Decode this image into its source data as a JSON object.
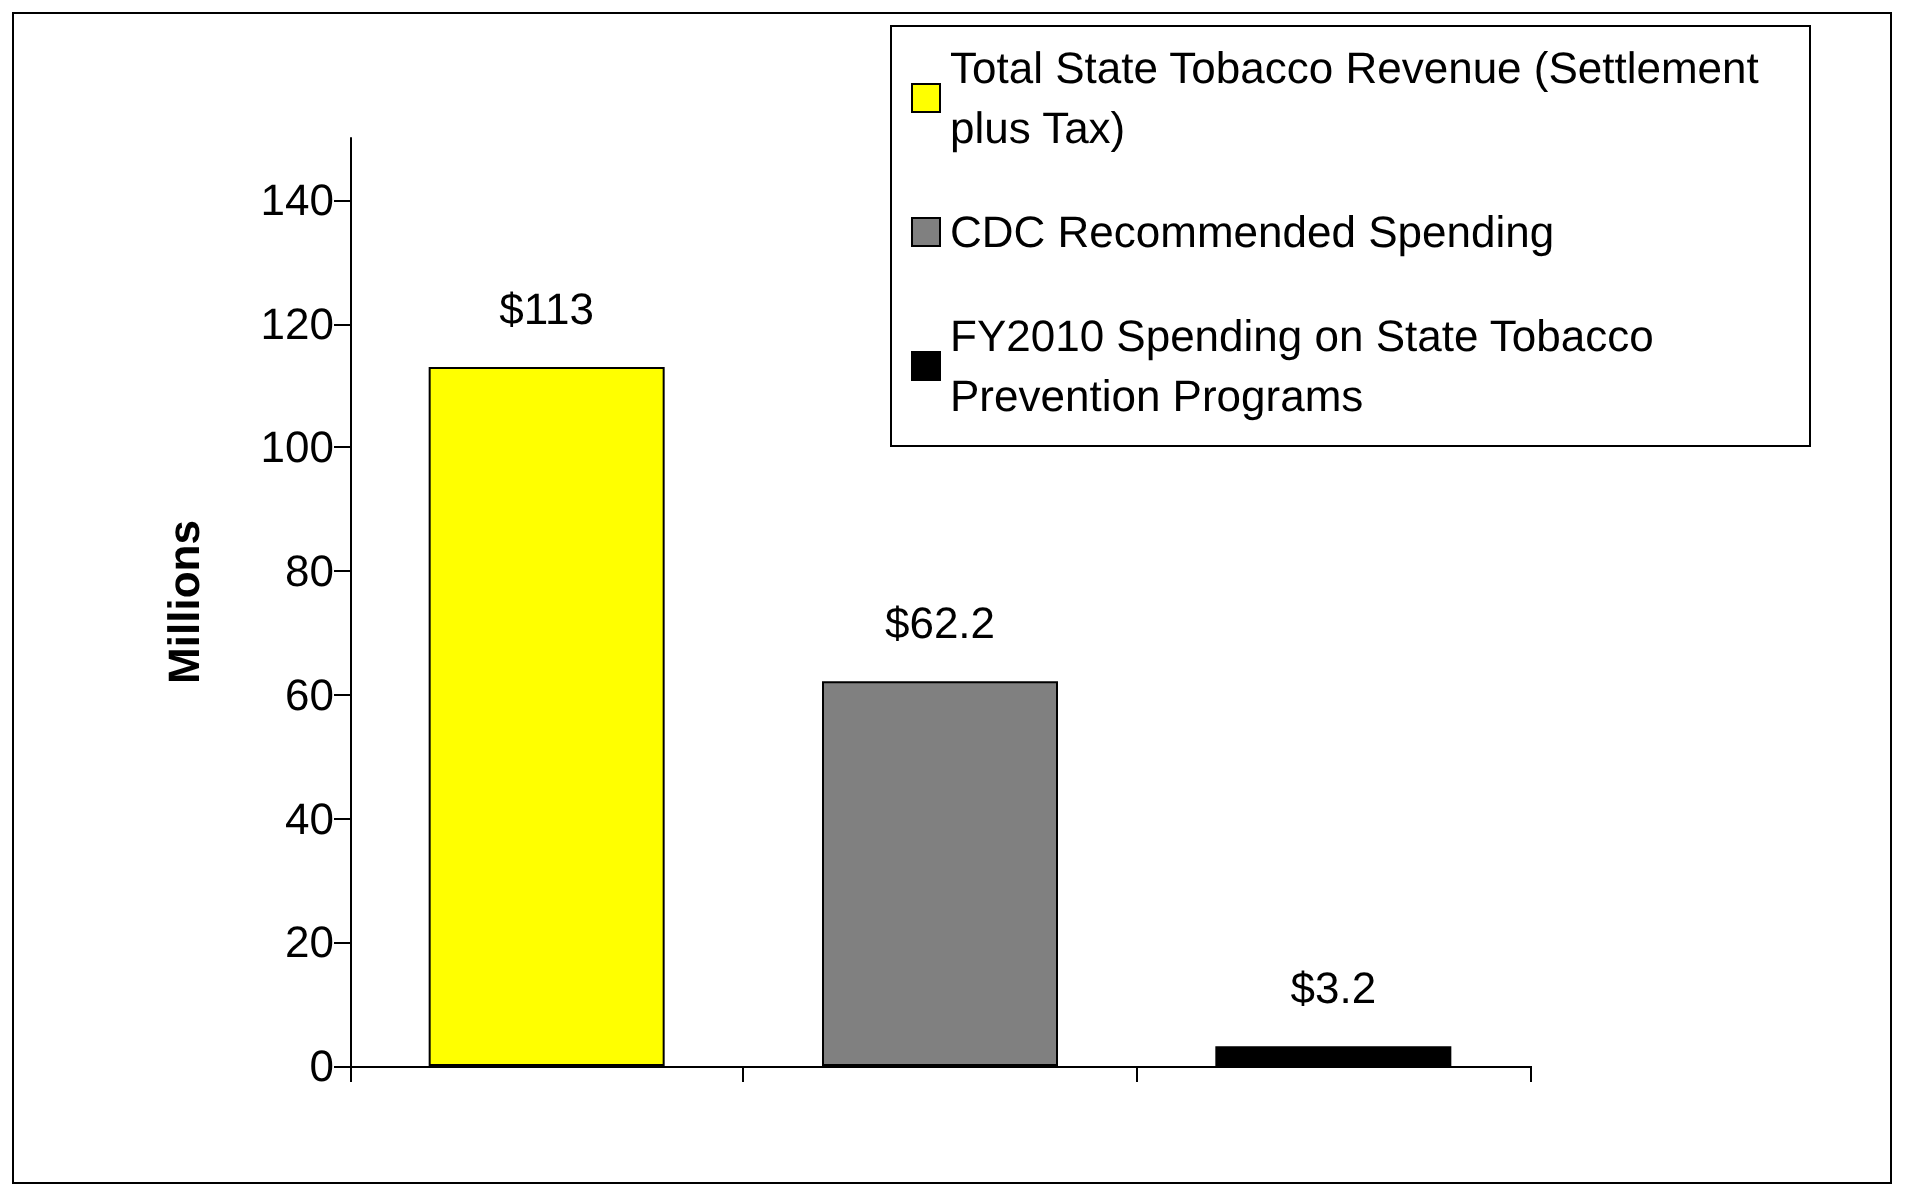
{
  "chart_data": {
    "type": "bar",
    "ylabel": "Millions",
    "categories": [
      null,
      null,
      null
    ],
    "series": [
      {
        "name": "Total State Tobacco Revenue (Settlement plus Tax)",
        "color": "#ffff00",
        "values": [
          113,
          null,
          null
        ],
        "value_labels": [
          "$113",
          null,
          null
        ]
      },
      {
        "name": "CDC Recommended Spending",
        "color": "#808080",
        "values": [
          null,
          62.2,
          null
        ],
        "value_labels": [
          null,
          "$62.2",
          null
        ]
      },
      {
        "name": "FY2010 Spending on State Tobacco Prevention Programs",
        "color": "#000000",
        "values": [
          null,
          null,
          3.2
        ],
        "value_labels": [
          null,
          null,
          "$3.2"
        ]
      }
    ],
    "ylim": [
      0,
      150
    ],
    "yticks": [
      0,
      20,
      40,
      60,
      80,
      100,
      120,
      140
    ],
    "grid": false,
    "legend": "top right"
  }
}
